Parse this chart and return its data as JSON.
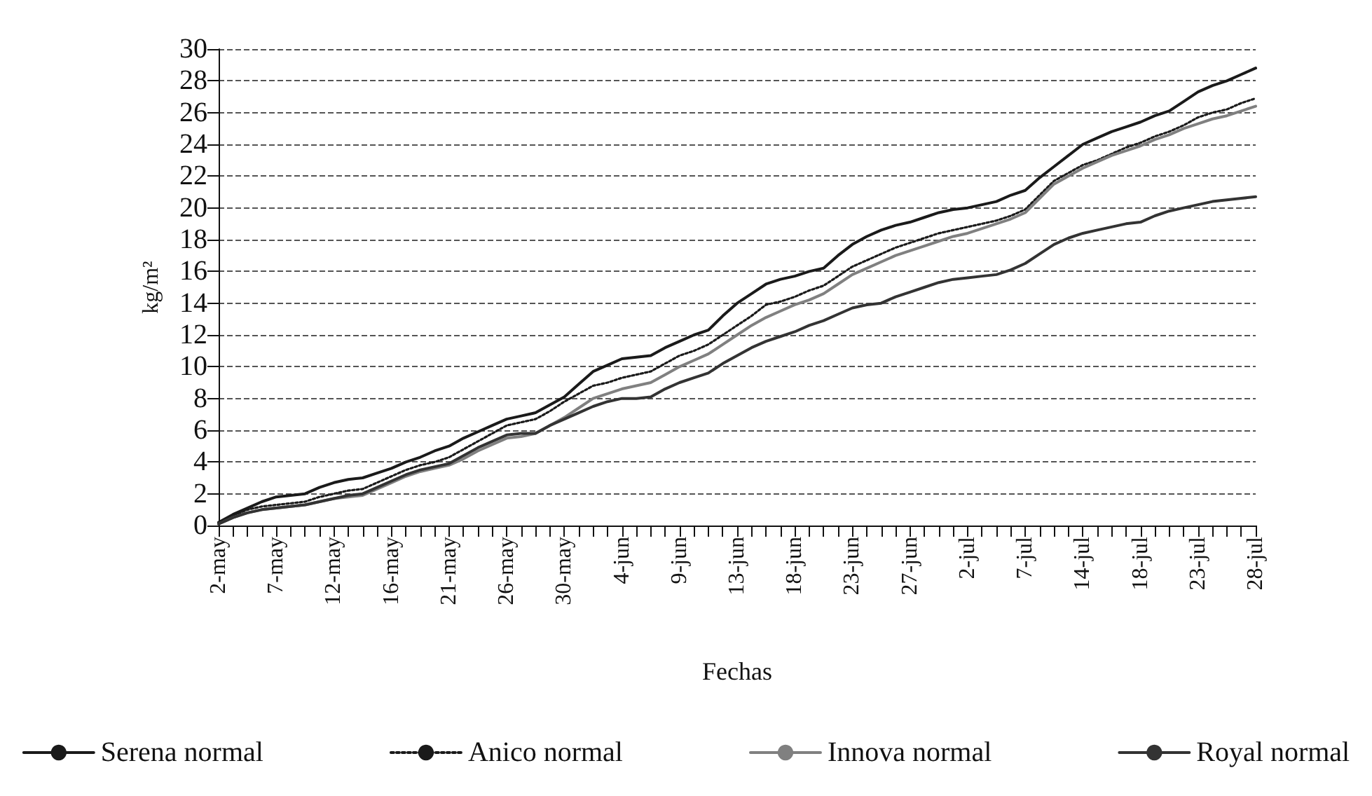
{
  "chart_data": {
    "type": "line",
    "xlabel": "Fechas",
    "ylabel": "kg/m²",
    "categories": [
      "2-may",
      null,
      null,
      null,
      "7-may",
      null,
      null,
      null,
      "12-may",
      null,
      null,
      null,
      "16-may",
      null,
      null,
      null,
      "21-may",
      null,
      null,
      null,
      "26-may",
      null,
      null,
      null,
      "30-may",
      null,
      null,
      null,
      "4-jun",
      null,
      null,
      null,
      "9-jun",
      null,
      null,
      null,
      "13-jun",
      null,
      null,
      null,
      "18-jun",
      null,
      null,
      null,
      "23-jun",
      null,
      null,
      null,
      "27-jun",
      null,
      null,
      null,
      "2-jul",
      null,
      null,
      null,
      "7-jul",
      null,
      null,
      null,
      "14-jul",
      null,
      null,
      null,
      "18-jul",
      null,
      null,
      null,
      "23-jul",
      null,
      null,
      null,
      "28-jul"
    ],
    "ylim": [
      0,
      30
    ],
    "yticks": [
      0,
      2,
      4,
      6,
      8,
      10,
      12,
      14,
      16,
      18,
      20,
      22,
      24,
      26,
      28,
      30
    ],
    "grid": "y",
    "legend": "bottom",
    "marker": "none",
    "series": [
      {
        "name": "Serena normal",
        "color": "#1a1a1a",
        "line_style": "solid",
        "values": [
          0.2,
          0.7,
          1.1,
          1.5,
          1.8,
          1.9,
          2.0,
          2.4,
          2.7,
          2.9,
          3.0,
          3.3,
          3.6,
          4.0,
          4.3,
          4.7,
          5.0,
          5.5,
          5.9,
          6.3,
          6.7,
          6.9,
          7.1,
          7.6,
          8.1,
          8.9,
          9.7,
          10.1,
          10.5,
          10.6,
          10.7,
          11.2,
          11.6,
          12.0,
          12.3,
          13.2,
          14.0,
          14.6,
          15.2,
          15.5,
          15.7,
          16.0,
          16.2,
          17.0,
          17.7,
          18.2,
          18.6,
          18.9,
          19.1,
          19.4,
          19.7,
          19.9,
          20.0,
          20.2,
          20.4,
          20.8,
          21.1,
          21.9,
          22.6,
          23.3,
          24.0,
          24.4,
          24.8,
          25.1,
          25.4,
          25.8,
          26.1,
          26.7,
          27.3,
          27.7,
          28.0,
          28.4,
          28.8
        ]
      },
      {
        "name": "Anico normal",
        "color": "#1a1a1a",
        "line_style": "dotted",
        "values": [
          0.1,
          0.6,
          1.0,
          1.2,
          1.3,
          1.4,
          1.5,
          1.8,
          2.0,
          2.2,
          2.3,
          2.7,
          3.1,
          3.5,
          3.8,
          4.0,
          4.3,
          4.8,
          5.3,
          5.8,
          6.3,
          6.5,
          6.7,
          7.2,
          7.8,
          8.3,
          8.8,
          9.0,
          9.3,
          9.5,
          9.7,
          10.2,
          10.7,
          11.0,
          11.4,
          12.0,
          12.6,
          13.2,
          13.9,
          14.1,
          14.4,
          14.8,
          15.1,
          15.7,
          16.3,
          16.7,
          17.1,
          17.5,
          17.8,
          18.1,
          18.4,
          18.6,
          18.8,
          19.0,
          19.2,
          19.5,
          19.9,
          20.8,
          21.7,
          22.2,
          22.7,
          23.0,
          23.4,
          23.8,
          24.1,
          24.5,
          24.8,
          25.2,
          25.7,
          26.0,
          26.2,
          26.6,
          26.9
        ]
      },
      {
        "name": "Innova normal",
        "color": "#808080",
        "line_style": "solid",
        "values": [
          0.1,
          0.5,
          0.8,
          1.0,
          1.1,
          1.2,
          1.3,
          1.5,
          1.7,
          1.8,
          1.9,
          2.3,
          2.7,
          3.1,
          3.4,
          3.6,
          3.8,
          4.2,
          4.7,
          5.1,
          5.5,
          5.6,
          5.8,
          6.3,
          6.8,
          7.4,
          8.0,
          8.3,
          8.6,
          8.8,
          9.0,
          9.5,
          10.0,
          10.4,
          10.8,
          11.4,
          12.0,
          12.6,
          13.1,
          13.5,
          13.9,
          14.2,
          14.6,
          15.2,
          15.8,
          16.2,
          16.6,
          17.0,
          17.3,
          17.6,
          17.9,
          18.2,
          18.4,
          18.7,
          19.0,
          19.3,
          19.7,
          20.6,
          21.5,
          22.0,
          22.5,
          22.9,
          23.3,
          23.6,
          23.9,
          24.3,
          24.6,
          25.0,
          25.3,
          25.6,
          25.8,
          26.1,
          26.4
        ]
      },
      {
        "name": "Royal normal",
        "color": "#333333",
        "line_style": "solid",
        "values": [
          0.1,
          0.5,
          0.8,
          1.0,
          1.1,
          1.2,
          1.3,
          1.5,
          1.7,
          1.9,
          2.0,
          2.4,
          2.8,
          3.2,
          3.5,
          3.7,
          3.9,
          4.4,
          4.9,
          5.3,
          5.7,
          5.8,
          5.8,
          6.3,
          6.7,
          7.1,
          7.5,
          7.8,
          8.0,
          8.0,
          8.1,
          8.6,
          9.0,
          9.3,
          9.6,
          10.2,
          10.7,
          11.2,
          11.6,
          11.9,
          12.2,
          12.6,
          12.9,
          13.3,
          13.7,
          13.9,
          14.0,
          14.4,
          14.7,
          15.0,
          15.3,
          15.5,
          15.6,
          15.7,
          15.8,
          16.1,
          16.5,
          17.1,
          17.7,
          18.1,
          18.4,
          18.6,
          18.8,
          19.0,
          19.1,
          19.5,
          19.8,
          20.0,
          20.2,
          20.4,
          20.5,
          20.6,
          20.7
        ]
      }
    ]
  }
}
